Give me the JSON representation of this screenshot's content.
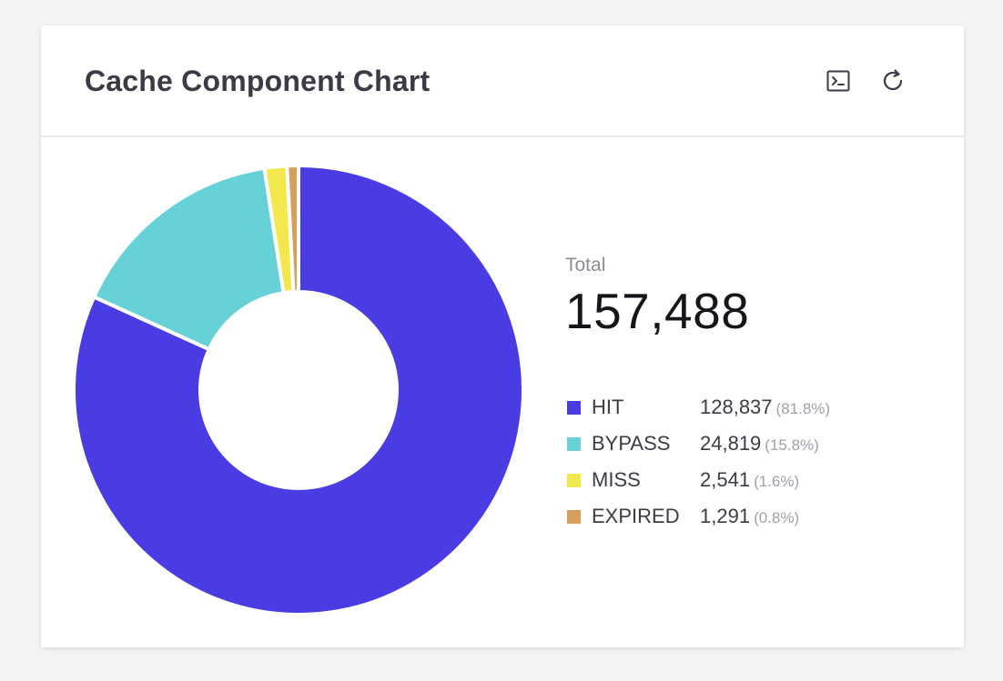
{
  "card": {
    "title": "Cache Component Chart",
    "actions": [
      {
        "icon": "terminal-icon"
      },
      {
        "icon": "refresh-icon"
      }
    ]
  },
  "summary": {
    "total_label": "Total",
    "total_value": "157,488"
  },
  "chart_data": {
    "type": "pie",
    "style": "donut",
    "categories": [
      "HIT",
      "BYPASS",
      "MISS",
      "EXPIRED"
    ],
    "values": [
      128837,
      24819,
      2541,
      1291
    ],
    "value_labels": [
      "128,837",
      "24,819",
      "2,541",
      "1,291"
    ],
    "percent_labels": [
      "(81.8%)",
      "(15.8%)",
      "(1.6%)",
      "(0.8%)"
    ],
    "colors": [
      "#4a3ce3",
      "#66d1d6",
      "#f2e84d",
      "#d6a05c"
    ],
    "total": 157488,
    "legend_position": "right"
  }
}
